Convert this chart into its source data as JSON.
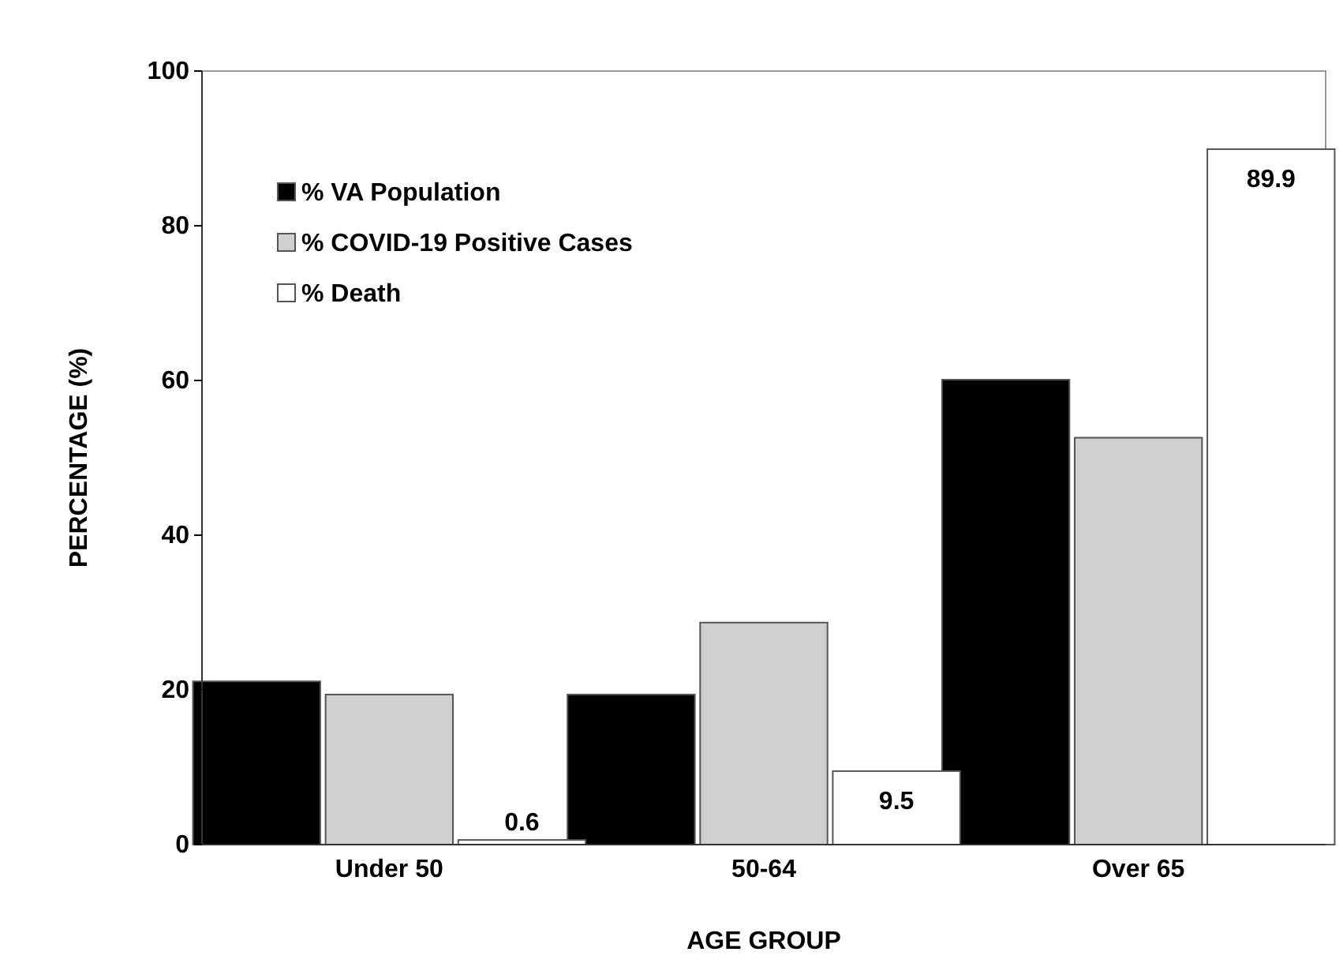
{
  "chart_data": {
    "type": "bar",
    "xlabel": "AGE GROUP",
    "ylabel": "PERCENTAGE (%)",
    "categories": [
      "Under 50",
      "50-64",
      "Over 65"
    ],
    "series": [
      {
        "name": "% VA Population",
        "color": "#000000",
        "values": [
          21.1,
          19.4,
          60.1
        ]
      },
      {
        "name": "% COVID-19 Positive Cases",
        "color": "#d0d0d0",
        "values": [
          19.4,
          28.7,
          52.6
        ]
      },
      {
        "name": "% Death",
        "color": "#ffffff",
        "values": [
          0.6,
          9.5,
          89.9
        ],
        "value_labels": [
          "0.6",
          "9.5",
          "89.9"
        ]
      }
    ],
    "ylim": [
      0,
      100
    ],
    "yticks": [
      0,
      20,
      40,
      60,
      80,
      100
    ],
    "grid": false,
    "legend": "top left"
  }
}
